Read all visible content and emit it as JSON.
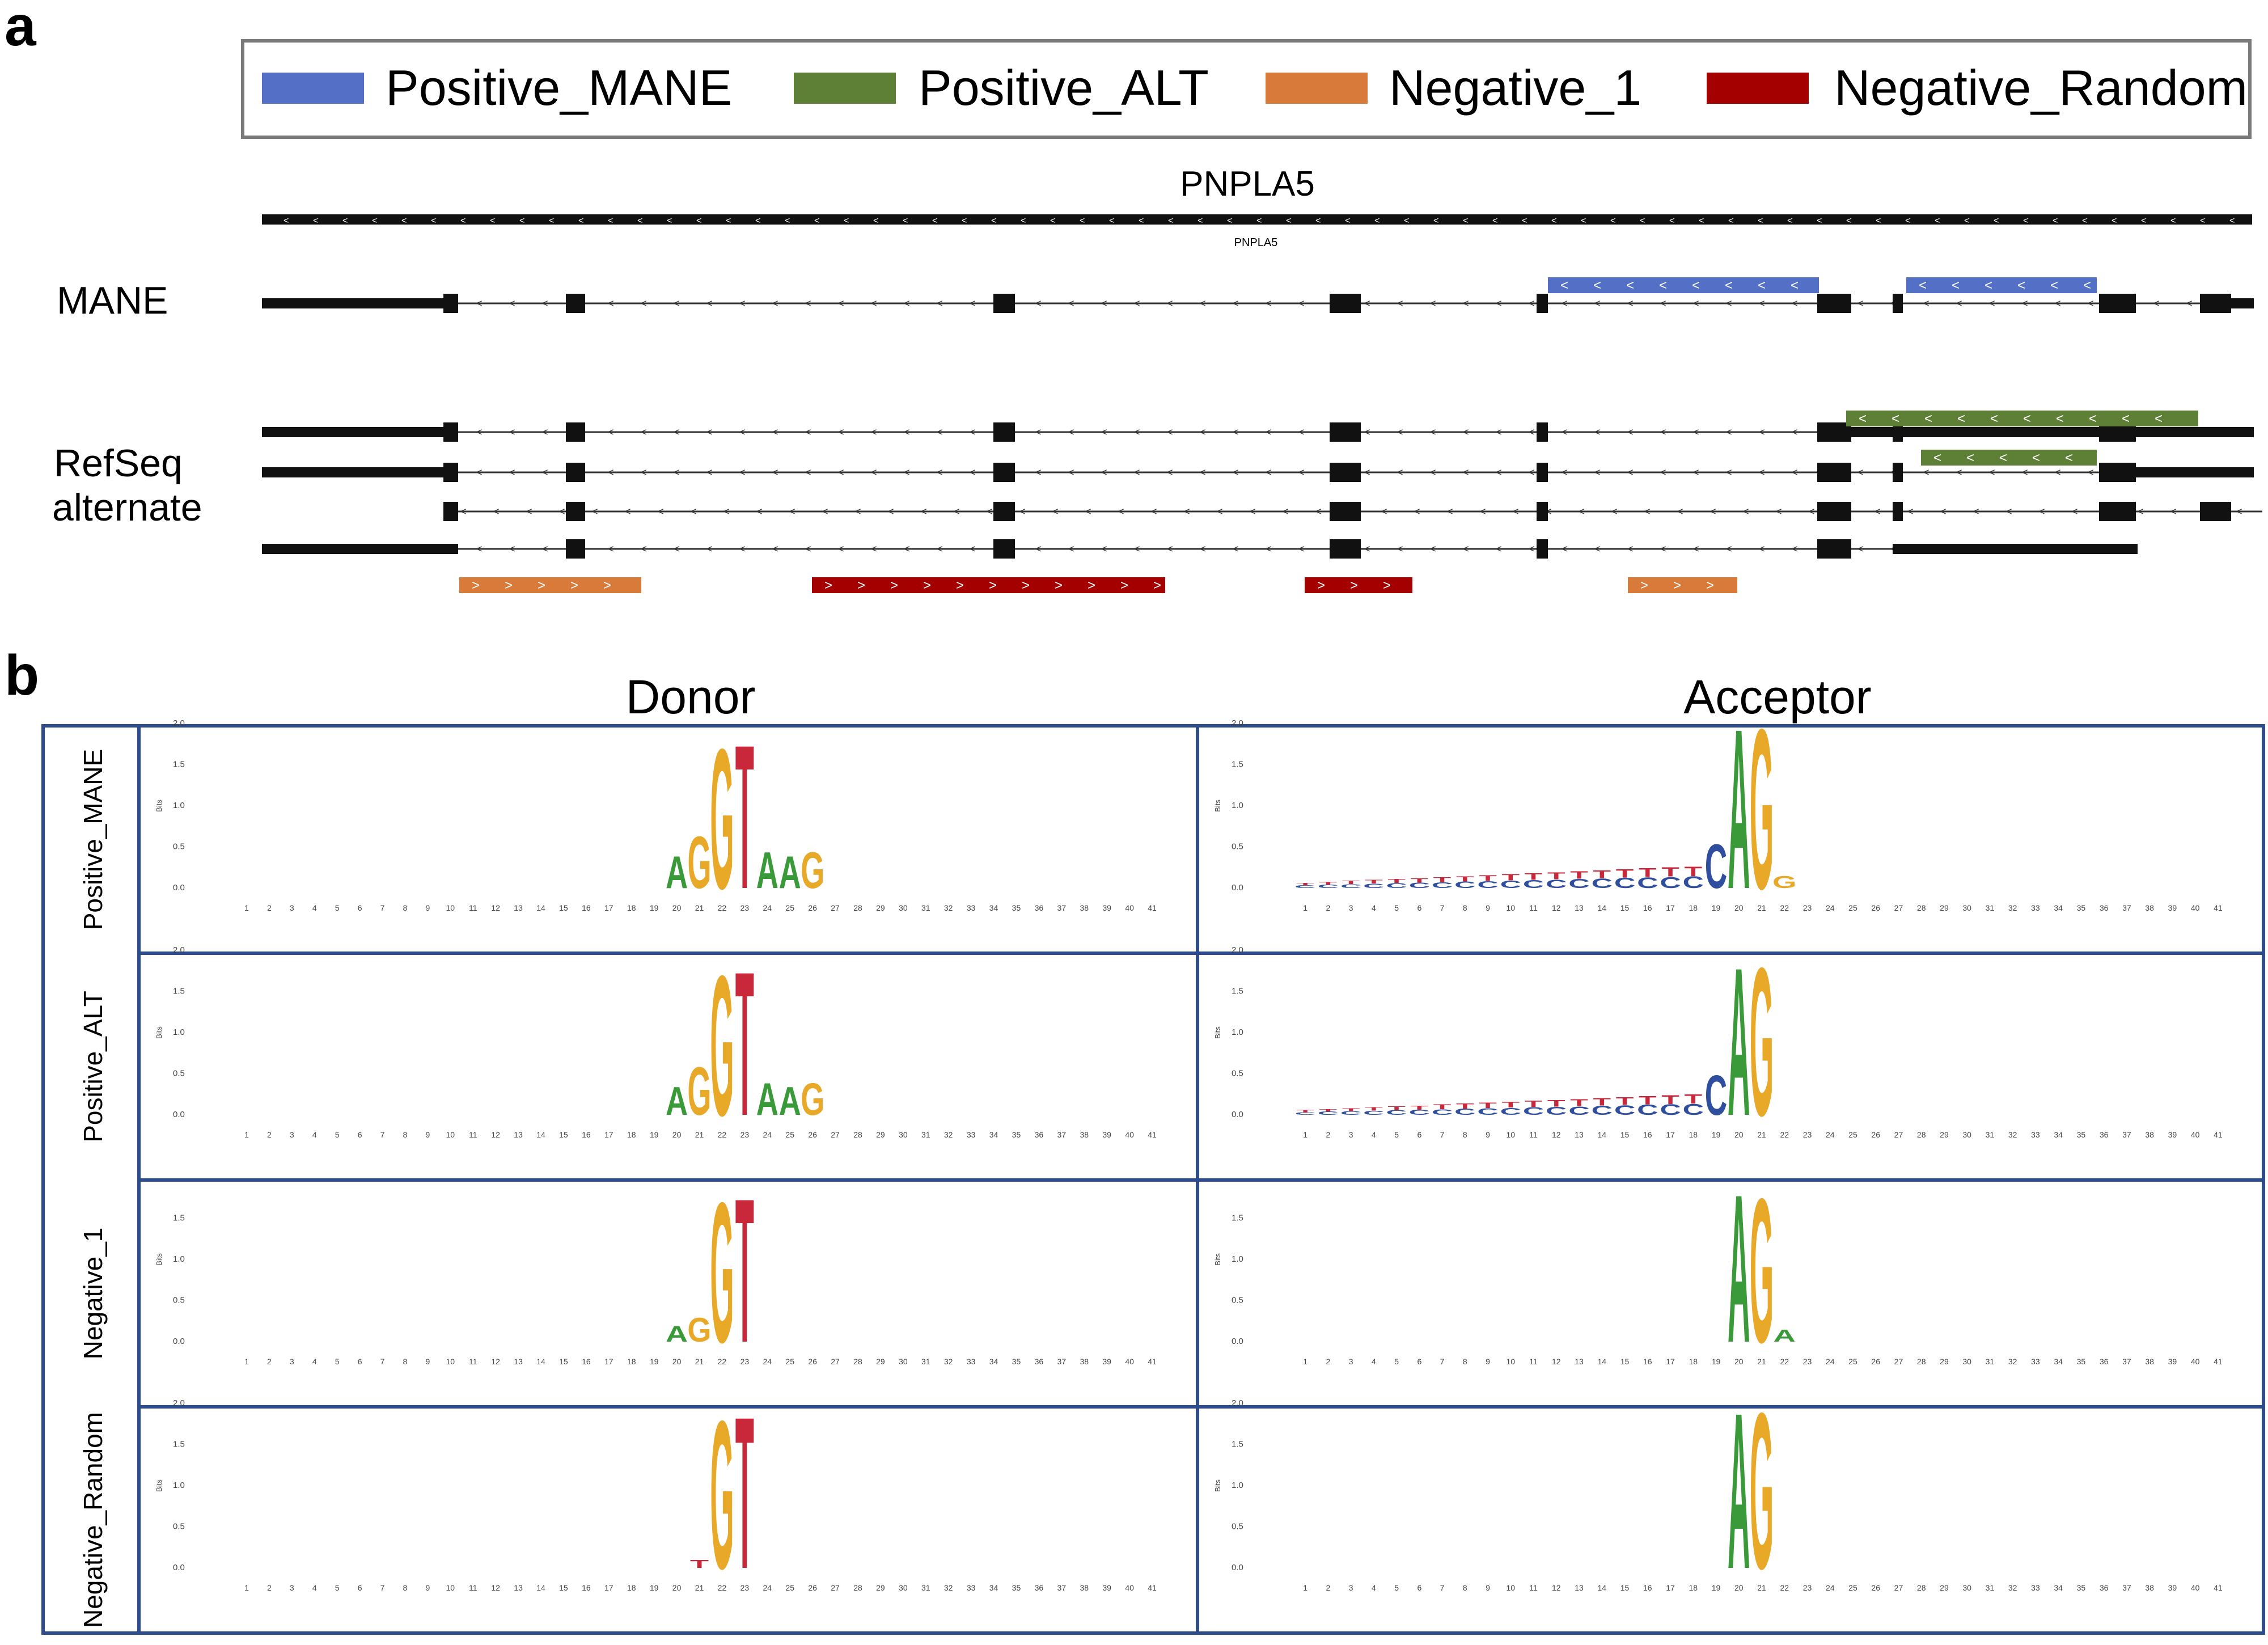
{
  "panel_a": {
    "letter": "a",
    "legend": [
      {
        "label": "Positive_MANE",
        "color": "#5470c6"
      },
      {
        "label": "Positive_ALT",
        "color": "#5e7f36"
      },
      {
        "label": "Negative_1",
        "color": "#d77a3a"
      },
      {
        "label": "Negative_Random",
        "color": "#a50000"
      }
    ],
    "gene_name": "PNPLA5",
    "gene_small_label": "PNPLA5",
    "track_labels": {
      "mane": "MANE",
      "refseq_line1": "RefSeq",
      "refseq_line2": "alternate"
    },
    "strand_glyph": "<",
    "forward_glyph": ">"
  },
  "panel_b": {
    "letter": "b",
    "col_titles": [
      "Donor",
      "Acceptor"
    ],
    "row_labels": [
      "Positive_MANE",
      "Positive_ALT",
      "Negative_1",
      "Negative_Random"
    ],
    "yaxis_label": "Bits",
    "ytick_labels_full": [
      "2.0",
      "1.5",
      "1.0",
      "0.5",
      "0.0"
    ],
    "ytick_labels_no2": [
      "1.5",
      "1.0",
      "0.5",
      "0.0"
    ],
    "positions": [
      "1",
      "2",
      "3",
      "4",
      "5",
      "6",
      "7",
      "8",
      "9",
      "10",
      "11",
      "12",
      "13",
      "14",
      "15",
      "16",
      "17",
      "18",
      "19",
      "20",
      "21",
      "22",
      "23",
      "24",
      "25",
      "26",
      "27",
      "28",
      "29",
      "30",
      "31",
      "32",
      "33",
      "34",
      "35",
      "36",
      "37",
      "38",
      "39",
      "40",
      "41"
    ],
    "base_colors": {
      "A": "#3a9a3a",
      "C": "#2f4e9e",
      "G": "#e8a828",
      "T": "#c8283a"
    }
  },
  "logos": {
    "donor": [
      {
        "main": [
          [
            22,
            "G",
            1.75
          ],
          [
            23,
            "T",
            1.8
          ],
          [
            21,
            "G",
            0.65
          ],
          [
            20,
            "A",
            0.4
          ],
          [
            24,
            "A",
            0.45
          ],
          [
            25,
            "A",
            0.4
          ],
          [
            26,
            "G",
            0.45
          ]
        ]
      },
      {
        "main": [
          [
            22,
            "G",
            1.75
          ],
          [
            23,
            "T",
            1.8
          ],
          [
            21,
            "G",
            0.6
          ],
          [
            20,
            "A",
            0.35
          ],
          [
            24,
            "A",
            0.4
          ],
          [
            25,
            "A",
            0.35
          ],
          [
            26,
            "G",
            0.4
          ]
        ]
      },
      {
        "main": [
          [
            22,
            "G",
            1.75
          ],
          [
            23,
            "T",
            1.8
          ],
          [
            21,
            "G",
            0.3
          ],
          [
            20,
            "A",
            0.2
          ]
        ]
      },
      {
        "main": [
          [
            22,
            "G",
            1.85
          ],
          [
            23,
            "T",
            1.9
          ],
          [
            21,
            "T",
            0.1
          ]
        ]
      }
    ],
    "acceptor": [
      {
        "main": [
          [
            20,
            "A",
            2.0
          ],
          [
            21,
            "G",
            2.0
          ],
          [
            19,
            "C",
            0.55
          ],
          [
            22,
            "G",
            0.15
          ]
        ]
      },
      {
        "main": [
          [
            20,
            "A",
            1.85
          ],
          [
            21,
            "G",
            1.85
          ],
          [
            19,
            "C",
            0.5
          ]
        ]
      },
      {
        "main": [
          [
            20,
            "A",
            1.85
          ],
          [
            21,
            "G",
            1.8
          ],
          [
            22,
            "A",
            0.15
          ]
        ]
      },
      {
        "main": [
          [
            20,
            "A",
            1.95
          ],
          [
            21,
            "G",
            1.95
          ]
        ]
      }
    ]
  }
}
